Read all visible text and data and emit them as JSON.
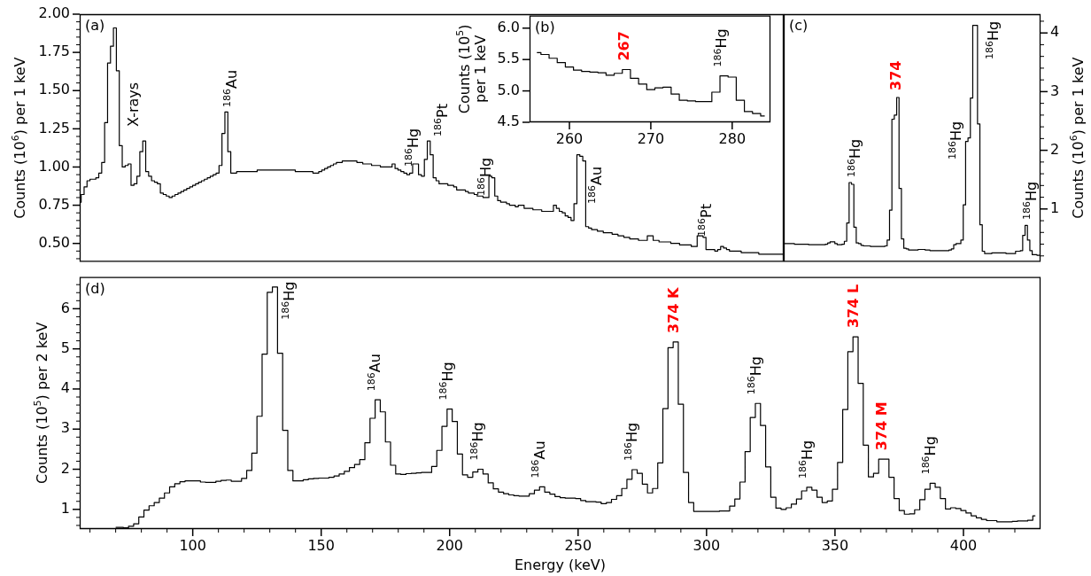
{
  "chart_data": [
    {
      "type": "step",
      "color": "#000000",
      "ylabel": "Counts (10$^{6}$) per 1 keV",
      "tick_labels": "y",
      "categories": [
        null,
        null,
        null,
        null,
        null,
        null,
        null,
        null,
        null,
        null,
        null,
        null,
        null,
        null,
        null,
        null,
        null,
        null,
        null,
        null,
        null,
        null,
        null,
        null,
        null,
        null,
        null,
        null,
        null,
        null,
        null,
        null,
        null,
        null,
        null,
        null,
        null,
        null,
        null,
        null,
        null,
        null,
        null,
        null,
        null,
        null,
        null,
        null,
        null,
        null,
        null,
        null,
        null,
        null,
        null,
        null,
        null,
        null,
        null,
        null,
        null,
        null,
        null,
        null,
        null,
        null,
        null,
        null,
        null,
        null,
        null,
        null,
        null,
        null,
        null,
        null,
        null,
        null,
        null,
        null,
        null,
        null,
        null,
        null,
        null,
        null,
        null,
        null,
        null,
        null,
        null,
        null,
        null,
        null,
        null,
        null,
        null,
        null,
        null,
        null,
        null,
        null,
        null,
        null,
        null,
        null,
        null,
        null,
        null,
        null,
        null,
        null,
        null,
        null,
        null,
        null,
        null,
        null,
        null,
        null,
        null,
        null,
        null,
        null,
        null,
        null,
        null,
        null,
        null,
        null,
        null,
        null,
        null,
        null,
        null,
        null,
        null,
        null,
        null,
        null,
        null,
        null,
        null,
        null,
        null,
        null,
        null,
        null,
        null,
        null,
        null,
        null,
        null,
        null,
        null,
        null,
        null,
        null,
        null,
        null,
        null,
        null,
        null,
        null,
        null,
        null,
        null,
        null,
        null,
        null,
        null,
        null,
        null,
        null,
        null,
        null,
        null,
        null,
        null,
        null,
        null,
        null,
        null,
        null,
        null,
        null,
        null,
        null,
        null,
        null,
        null,
        null,
        null,
        null,
        null,
        null,
        null,
        null,
        null,
        null,
        null,
        null,
        null,
        null,
        null,
        null,
        null,
        null,
        null,
        null,
        null,
        null,
        null,
        null,
        null,
        null,
        null,
        null,
        null,
        null,
        null,
        null,
        null,
        null,
        null,
        null,
        null,
        null,
        null,
        null,
        null,
        null,
        null,
        null,
        null,
        null,
        null,
        null,
        null,
        null,
        null
      ],
      "values": [
        0.77,
        0.82,
        0.87,
        0.91,
        0.92,
        0.92,
        0.93,
        0.96,
        1.03,
        1.29,
        1.68,
        1.79,
        1.91,
        1.63,
        1.14,
        1.0,
        1.01,
        1.02,
        0.88,
        0.89,
        0.94,
        1.1,
        1.17,
        0.97,
        0.94,
        0.91,
        0.9,
        0.89,
        0.83,
        0.82,
        0.81,
        0.8,
        0.81,
        0.82,
        0.83,
        0.84,
        0.85,
        0.86,
        0.87,
        0.88,
        0.89,
        0.9,
        0.91,
        0.92,
        0.93,
        0.94,
        0.95,
        0.96,
        1.01,
        1.22,
        1.36,
        1.1,
        0.96,
        0.96,
        0.97,
        0.97,
        0.97,
        0.97,
        0.97,
        0.97,
        0.97,
        0.98,
        0.98,
        0.98,
        0.98,
        0.98,
        0.98,
        0.98,
        0.98,
        0.98,
        0.98,
        0.98,
        0.98,
        0.98,
        0.97,
        0.97,
        0.97,
        0.97,
        0.97,
        0.97,
        0.96,
        0.96,
        0.97,
        0.98,
        0.99,
        1.0,
        1.01,
        1.02,
        1.03,
        1.03,
        1.04,
        1.04,
        1.04,
        1.04,
        1.04,
        1.03,
        1.03,
        1.02,
        1.02,
        1.02,
        1.01,
        1.01,
        1.01,
        1.0,
        1.0,
        1.0,
        1.0,
        1.02,
        0.99,
        0.98,
        0.97,
        0.96,
        0.95,
        0.96,
        1.02,
        1.02,
        0.95,
        0.94,
        1.05,
        1.17,
        1.08,
        0.93,
        0.91,
        0.89,
        0.89,
        0.89,
        0.88,
        0.88,
        0.87,
        0.85,
        0.85,
        0.85,
        0.84,
        0.83,
        0.83,
        0.82,
        0.81,
        0.81,
        0.8,
        0.8,
        0.94,
        0.93,
        0.81,
        0.78,
        0.77,
        0.77,
        0.76,
        0.75,
        0.75,
        0.74,
        0.75,
        0.75,
        0.73,
        0.73,
        0.73,
        0.72,
        0.72,
        0.72,
        0.71,
        0.71,
        0.71,
        0.71,
        0.75,
        0.73,
        0.71,
        0.7,
        0.68,
        0.67,
        0.65,
        0.76,
        1.08,
        1.07,
        1.04,
        0.61,
        0.6,
        0.59,
        0.59,
        0.58,
        0.58,
        0.57,
        0.57,
        0.57,
        0.56,
        0.56,
        0.55,
        0.55,
        0.54,
        0.54,
        0.53,
        0.53,
        0.53,
        0.52,
        0.52,
        0.52,
        0.55,
        0.55,
        0.52,
        0.52,
        0.51,
        0.51,
        0.51,
        0.51,
        0.5,
        0.5,
        0.5,
        0.49,
        0.49,
        0.49,
        0.49,
        0.48,
        0.48,
        0.55,
        0.55,
        0.54,
        0.46,
        0.46,
        0.46,
        0.45,
        0.46,
        0.48,
        0.47,
        0.46,
        0.45,
        0.45,
        0.45,
        0.45,
        0.44,
        0.44,
        0.44,
        0.44,
        0.44,
        0.44,
        0.43,
        0.43,
        0.43,
        0.43,
        0.43,
        0.43,
        0.43,
        0.43,
        0.43
      ],
      "ylim": [
        0.38,
        2.0
      ],
      "yticks": [
        {
          "value": 0.4,
          "label": null
        },
        {
          "value": 0.45,
          "label": null
        },
        {
          "value": 0.5,
          "label": "0.50"
        },
        {
          "value": 0.55,
          "label": null
        },
        {
          "value": 0.6,
          "label": null
        },
        {
          "value": 0.65,
          "label": null
        },
        {
          "value": 0.7,
          "label": null
        },
        0.75,
        {
          "value": 0.8,
          "label": null
        },
        {
          "value": 0.85,
          "label": null
        },
        {
          "value": 0.9,
          "label": null
        },
        {
          "value": 0.95,
          "label": null
        },
        {
          "value": 1.0,
          "label": "1.00"
        },
        {
          "value": 1.05,
          "label": null
        },
        {
          "value": 1.1,
          "label": null
        },
        {
          "value": 1.15,
          "label": null
        },
        {
          "value": 1.2,
          "label": null
        },
        1.25,
        {
          "value": 1.3,
          "label": null
        },
        {
          "value": 1.35,
          "label": null
        },
        {
          "value": 1.4,
          "label": null
        },
        {
          "value": 1.45,
          "label": null
        },
        {
          "value": 1.5,
          "label": "1.50"
        },
        {
          "value": 1.55,
          "label": null
        },
        {
          "value": 1.6,
          "label": null
        },
        {
          "value": 1.65,
          "label": null
        },
        {
          "value": 1.7,
          "label": null
        },
        1.75,
        {
          "value": 1.8,
          "label": null
        },
        {
          "value": 1.85,
          "label": null
        },
        {
          "value": 1.9,
          "label": null
        },
        {
          "value": 1.95,
          "label": null
        },
        {
          "value": 2.0,
          "label": "2.00"
        }
      ],
      "annotations": [
        "(a)",
        "X-rays",
        "$^{186}$Au",
        "$^{186}$Hg",
        "$^{186}$Pt",
        "$^{186}$Hg",
        "$^{186}$Au",
        "$^{186}$Pt"
      ]
    },
    {
      "type": "step",
      "color": "#000000",
      "ylabel": "Counts (10$^{5}$) per 1 keV",
      "x": [
        256,
        257,
        258,
        259,
        260,
        261,
        262,
        263,
        264,
        265,
        266,
        267,
        268,
        269,
        270,
        271,
        272,
        273,
        274,
        275,
        276,
        277,
        278,
        279,
        280,
        281,
        282,
        283,
        284
      ],
      "values": [
        5.61,
        5.58,
        5.52,
        5.45,
        5.38,
        5.33,
        5.31,
        5.3,
        5.29,
        5.25,
        5.28,
        5.34,
        5.2,
        5.11,
        5.02,
        5.05,
        5.06,
        4.95,
        4.85,
        4.84,
        4.83,
        4.83,
        4.98,
        5.24,
        5.22,
        4.85,
        4.67,
        4.64,
        4.6
      ],
      "xlim": [
        255.1,
        284.7
      ],
      "xticks": [
        260,
        270,
        280
      ],
      "ylim": [
        4.5,
        6.2
      ],
      "yticks": [
        4.5,
        {
          "value": 5.0,
          "label": "5.0"
        },
        5.5,
        {
          "value": 6.0,
          "label": "6.0"
        }
      ],
      "annotations": [
        "(b)",
        {
          "text": "267",
          "x": 267,
          "y": 5.34
        },
        {
          "text": "$^{186}$Hg",
          "x": 279,
          "y": 5.24
        }
      ]
    },
    {
      "type": "step",
      "ylabel": "Counts (10$^{6}$) per 1 keV",
      "tick_labels": "y",
      "categories": [
        null,
        null,
        null,
        null,
        null,
        null,
        null,
        null,
        null,
        null,
        null,
        null,
        null,
        null,
        null,
        null,
        null,
        null,
        null,
        null,
        null,
        null,
        null,
        null,
        null,
        null,
        null,
        null,
        null,
        null,
        null,
        null,
        null,
        null,
        null,
        null,
        null,
        null,
        null,
        null,
        null,
        null,
        null,
        null,
        null,
        null,
        null,
        null,
        null,
        null,
        null,
        null,
        null,
        null,
        null,
        null,
        null,
        null,
        null,
        null,
        null,
        null,
        null,
        null,
        null,
        null,
        null,
        null,
        null,
        null,
        null,
        null,
        null,
        null,
        null,
        null,
        null,
        null,
        null,
        null,
        null,
        null,
        null,
        null,
        null,
        null,
        null,
        null,
        null,
        null,
        null,
        null,
        null,
        null,
        null,
        null,
        null,
        null,
        null,
        null,
        null,
        null,
        null,
        null,
        null,
        null,
        null,
        null,
        null
      ],
      "series": [
        {
          "color": "#000000",
          "values": [
            0.41,
            0.41,
            0.41,
            0.41,
            0.41,
            0.4,
            0.4,
            0.4,
            0.4,
            0.4,
            0.4,
            0.39,
            0.39,
            0.39,
            0.39,
            0.39,
            0.39,
            0.39,
            0.4,
            0.42,
            0.44,
            0.44,
            0.41,
            0.39,
            0.39,
            0.4,
            0.45,
            0.76,
            1.45,
            1.42,
            0.69,
            0.42,
            0.41,
            0.38,
            0.37,
            0.37,
            0.37,
            0.36,
            0.36,
            0.36,
            0.36,
            0.36,
            0.36,
            0.37,
            0.47,
            0.98,
            2.53,
            2.6,
            2.9,
            1.35,
            0.49,
            0.33,
            0.32,
            0.3,
            0.3,
            0.3,
            0.3,
            0.31,
            0.31,
            0.31,
            0.3,
            0.3,
            0.29,
            0.29,
            0.29,
            0.29,
            0.29,
            0.29,
            0.29,
            0.29,
            0.3,
            0.32,
            0.39,
            0.41,
            0.41,
            0.47,
            1.07,
            2.15,
            2.21,
            2.89,
            4.13,
            4.13,
            2.45,
            0.73,
            0.28,
            0.24,
            0.24,
            0.24,
            0.25,
            0.25,
            0.25,
            0.25,
            0.25,
            0.25,
            0.24,
            0.24,
            0.24,
            0.24,
            0.28,
            0.28,
            0.29,
            0.55,
            0.72,
            0.47,
            0.29,
            0.22,
            0.22,
            0.21,
            0.21
          ]
        }
      ],
      "ylim": [
        0.1,
        4.32
      ],
      "yticks": [
        {
          "value": 0.2,
          "label": null
        },
        {
          "value": 0.4,
          "label": null
        },
        {
          "value": 0.6,
          "label": null
        },
        {
          "value": 0.8,
          "label": null
        },
        1,
        {
          "value": 1.2,
          "label": null
        },
        {
          "value": 1.4,
          "label": null
        },
        {
          "value": 1.6,
          "label": null
        },
        {
          "value": 1.8,
          "label": null
        },
        2,
        {
          "value": 2.2,
          "label": null
        },
        {
          "value": 2.4,
          "label": null
        },
        {
          "value": 2.6,
          "label": null
        },
        {
          "value": 2.8,
          "label": null
        },
        3,
        {
          "value": 3.2,
          "label": null
        },
        {
          "value": 3.4,
          "label": null
        },
        {
          "value": 3.6,
          "label": null
        },
        {
          "value": 3.8,
          "label": null
        },
        4,
        {
          "value": 4.2,
          "label": null
        }
      ],
      "annotations": [
        "(c)",
        "$^{186}$Hg",
        "374",
        "$^{186}$Hg",
        "$^{186}$Hg",
        "$^{186}$Hg"
      ]
    },
    {
      "type": "step",
      "color": "#000000",
      "xlabel": "Energy (keV)",
      "ylabel": "Counts (10$^{5}$) per 2 keV",
      "x": [
        70,
        72,
        74,
        76,
        78,
        80,
        82,
        84,
        86,
        88,
        90,
        92,
        94,
        96,
        98,
        100,
        102,
        104,
        106,
        108,
        110,
        112,
        114,
        116,
        118,
        120,
        122,
        124,
        126,
        128,
        130,
        132,
        134,
        136,
        138,
        140,
        142,
        144,
        146,
        148,
        150,
        152,
        154,
        156,
        158,
        160,
        162,
        164,
        166,
        168,
        170,
        172,
        174,
        176,
        178,
        180,
        182,
        184,
        186,
        188,
        190,
        192,
        194,
        196,
        198,
        200,
        202,
        204,
        206,
        208,
        210,
        212,
        214,
        216,
        218,
        220,
        222,
        224,
        226,
        228,
        230,
        232,
        234,
        236,
        238,
        240,
        242,
        244,
        246,
        248,
        250,
        252,
        254,
        256,
        258,
        260,
        262,
        264,
        266,
        268,
        270,
        272,
        274,
        276,
        278,
        280,
        282,
        284,
        286,
        288,
        290,
        292,
        294,
        296,
        298,
        300,
        302,
        304,
        306,
        308,
        310,
        312,
        314,
        316,
        318,
        320,
        322,
        324,
        326,
        328,
        330,
        332,
        334,
        336,
        338,
        340,
        342,
        344,
        346,
        348,
        350,
        352,
        354,
        356,
        358,
        360,
        362,
        364,
        366,
        368,
        370,
        372,
        374,
        376,
        378,
        380,
        382,
        384,
        386,
        388,
        390,
        392,
        394,
        396,
        398,
        400,
        402,
        404,
        406,
        408,
        410,
        412,
        414,
        416,
        418,
        420,
        422,
        424,
        426,
        428
      ],
      "values": [
        0.55,
        0.55,
        0.54,
        0.58,
        0.64,
        0.81,
        0.98,
        1.09,
        1.17,
        1.28,
        1.41,
        1.56,
        1.64,
        1.69,
        1.71,
        1.71,
        1.71,
        1.68,
        1.67,
        1.67,
        1.7,
        1.72,
        1.73,
        1.7,
        1.7,
        1.77,
        1.97,
        2.4,
        3.32,
        4.87,
        6.41,
        6.54,
        4.89,
        2.97,
        1.97,
        1.71,
        1.71,
        1.74,
        1.76,
        1.77,
        1.78,
        1.78,
        1.8,
        1.83,
        1.88,
        1.95,
        2.04,
        2.12,
        2.24,
        2.66,
        3.27,
        3.73,
        3.43,
        2.68,
        2.1,
        1.88,
        1.87,
        1.89,
        1.9,
        1.91,
        1.92,
        1.92,
        2.07,
        2.47,
        3.07,
        3.5,
        3.19,
        2.38,
        1.86,
        1.8,
        1.93,
        2.0,
        1.88,
        1.66,
        1.51,
        1.43,
        1.39,
        1.36,
        1.34,
        1.33,
        1.33,
        1.39,
        1.48,
        1.56,
        1.43,
        1.38,
        1.32,
        1.29,
        1.28,
        1.28,
        1.27,
        1.22,
        1.19,
        1.19,
        1.18,
        1.14,
        1.17,
        1.25,
        1.34,
        1.52,
        1.75,
        1.99,
        1.9,
        1.63,
        1.41,
        1.52,
        2.16,
        3.51,
        5.03,
        5.17,
        3.62,
        1.92,
        1.17,
        0.95,
        0.95,
        0.95,
        0.95,
        0.95,
        0.96,
        0.96,
        1.08,
        1.26,
        1.68,
        2.44,
        3.29,
        3.64,
        3.09,
        2.06,
        1.3,
        1.03,
        1.0,
        1.04,
        1.13,
        1.26,
        1.46,
        1.55,
        1.48,
        1.3,
        1.17,
        1.21,
        1.5,
        2.17,
        3.49,
        4.93,
        5.3,
        4.14,
        2.6,
        1.81,
        1.9,
        2.25,
        2.25,
        1.8,
        1.27,
        0.97,
        0.88,
        0.89,
        0.99,
        1.24,
        1.5,
        1.65,
        1.55,
        1.27,
        1.01,
        1.04,
        1.02,
        0.97,
        0.91,
        0.84,
        0.79,
        0.75,
        0.72,
        0.72,
        0.69,
        0.69,
        0.69,
        0.7,
        0.71,
        0.71,
        0.73,
        0.84
      ],
      "xlim": [
        56,
        430
      ],
      "xticks": [
        {
          "value": 60,
          "label": null
        },
        {
          "value": 70,
          "label": null
        },
        {
          "value": 80,
          "label": null
        },
        {
          "value": 90,
          "label": null
        },
        100,
        {
          "value": 110,
          "label": null
        },
        {
          "value": 120,
          "label": null
        },
        {
          "value": 130,
          "label": null
        },
        {
          "value": 140,
          "label": null
        },
        150,
        {
          "value": 160,
          "label": null
        },
        {
          "value": 170,
          "label": null
        },
        {
          "value": 180,
          "label": null
        },
        {
          "value": 190,
          "label": null
        },
        200,
        {
          "value": 210,
          "label": null
        },
        {
          "value": 220,
          "label": null
        },
        {
          "value": 230,
          "label": null
        },
        {
          "value": 240,
          "label": null
        },
        250,
        {
          "value": 260,
          "label": null
        },
        {
          "value": 270,
          "label": null
        },
        {
          "value": 280,
          "label": null
        },
        {
          "value": 290,
          "label": null
        },
        300,
        {
          "value": 310,
          "label": null
        },
        {
          "value": 320,
          "label": null
        },
        {
          "value": 330,
          "label": null
        },
        {
          "value": 340,
          "label": null
        },
        350,
        {
          "value": 360,
          "label": null
        },
        {
          "value": 370,
          "label": null
        },
        {
          "value": 380,
          "label": null
        },
        {
          "value": 390,
          "label": null
        },
        400,
        {
          "value": 410,
          "label": null
        },
        {
          "value": 420,
          "label": null
        }
      ],
      "ylim": [
        0.51,
        6.79
      ],
      "yticks": [
        {
          "value": 0.6,
          "label": null
        },
        {
          "value": 0.8,
          "label": null
        },
        1,
        {
          "value": 1.2,
          "label": null
        },
        {
          "value": 1.4,
          "label": null
        },
        {
          "value": 1.6,
          "label": null
        },
        {
          "value": 1.8,
          "label": null
        },
        2,
        {
          "value": 2.2,
          "label": null
        },
        {
          "value": 2.4,
          "label": null
        },
        {
          "value": 2.6,
          "label": null
        },
        {
          "value": 2.8,
          "label": null
        },
        3,
        {
          "value": 3.2,
          "label": null
        },
        {
          "value": 3.4,
          "label": null
        },
        {
          "value": 3.6,
          "label": null
        },
        {
          "value": 3.8,
          "label": null
        },
        4,
        {
          "value": 4.2,
          "label": null
        },
        {
          "value": 4.4,
          "label": null
        },
        {
          "value": 4.6,
          "label": null
        },
        {
          "value": 4.8,
          "label": null
        },
        5,
        {
          "value": 5.2,
          "label": null
        },
        {
          "value": 5.4,
          "label": null
        },
        {
          "value": 5.6,
          "label": null
        },
        {
          "value": 5.8,
          "label": null
        },
        6,
        {
          "value": 6.2,
          "label": null
        },
        {
          "value": 6.4,
          "label": null
        },
        {
          "value": 6.6,
          "label": null
        }
      ],
      "annotations": [
        "(d)",
        {
          "text": "$^{186}$Hg",
          "x": 132,
          "y": 6.54
        },
        {
          "text": "$^{186}$Au",
          "x": 172,
          "y": 3.73
        },
        {
          "text": "$^{186}$Hg",
          "x": 200,
          "y": 3.5
        },
        {
          "text": "$^{186}$Hg",
          "x": 212,
          "y": 2.0
        },
        {
          "text": "$^{186}$Au",
          "x": 236,
          "y": 1.56
        },
        {
          "text": "$^{186}$Hg",
          "x": 272,
          "y": 1.99
        },
        {
          "text": "374 K",
          "x": 288,
          "y": 5.17
        },
        {
          "text": "$^{186}$Hg",
          "x": 320,
          "y": 3.64
        },
        {
          "text": "$^{186}$Hg",
          "x": 340,
          "y": 1.55
        },
        {
          "text": "374 L",
          "x": 358,
          "y": 5.3
        },
        {
          "text": "374 M",
          "x": 369,
          "y": 2.25
        },
        {
          "text": "$^{186}$Hg",
          "x": 388,
          "y": 1.65
        }
      ]
    }
  ]
}
